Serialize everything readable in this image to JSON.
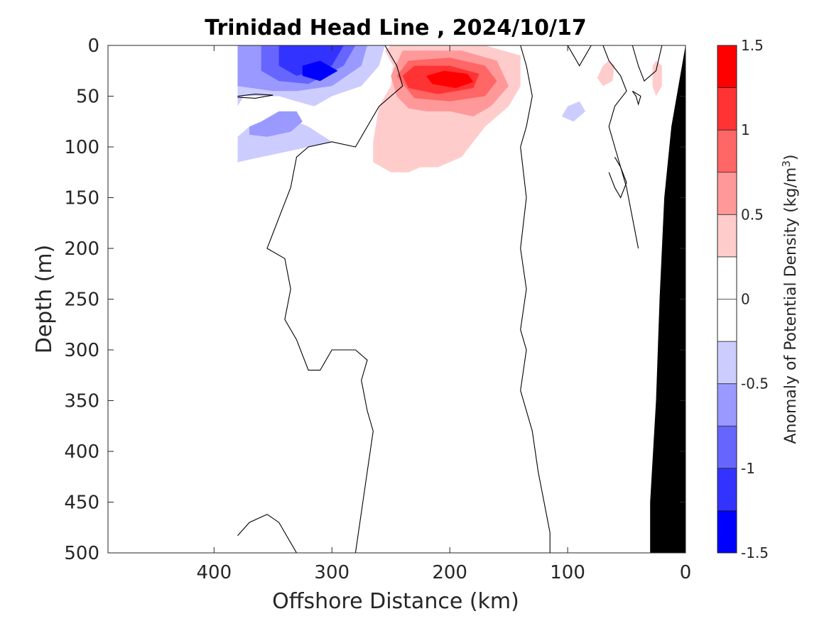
{
  "chart_data": {
    "type": "heatmap",
    "title": "Trinidad Head Line , 2024/10/17",
    "xlabel": "Offshore Distance (km)",
    "ylabel": "Depth (m)",
    "xlim": [
      490,
      0
    ],
    "ylim": [
      0,
      500
    ],
    "x_ticks": [
      400,
      300,
      200,
      100,
      0
    ],
    "y_ticks": [
      0,
      50,
      100,
      150,
      200,
      250,
      300,
      350,
      400,
      450,
      500
    ],
    "grid": false,
    "colorbar": {
      "label": "Anomaly of Potential Density (kg/m",
      "label_superscript": "3",
      "label_suffix": ")",
      "range": [
        -1.5,
        1.5
      ],
      "tick_values": [
        1.5,
        1,
        0.5,
        0,
        -0.5,
        -1,
        -1.5
      ],
      "tick_labels": [
        "1.5",
        "1",
        "0.5",
        "0",
        "-0.5",
        "-1",
        "-1.5"
      ],
      "levels": [
        {
          "from": 1.25,
          "to": 1.5,
          "color": "#ff0000"
        },
        {
          "from": 1.0,
          "to": 1.25,
          "color": "#ff3333"
        },
        {
          "from": 0.75,
          "to": 1.0,
          "color": "#ff6666"
        },
        {
          "from": 0.5,
          "to": 0.75,
          "color": "#ff9999"
        },
        {
          "from": 0.25,
          "to": 0.5,
          "color": "#ffcccc"
        },
        {
          "from": 0.0,
          "to": 0.25,
          "color": "#ffffff"
        },
        {
          "from": -0.25,
          "to": 0.0,
          "color": "#ffffff"
        },
        {
          "from": -0.5,
          "to": -0.25,
          "color": "#ccccff"
        },
        {
          "from": -0.75,
          "to": -0.5,
          "color": "#9999ff"
        },
        {
          "from": -1.0,
          "to": -0.75,
          "color": "#6666ff"
        },
        {
          "from": -1.25,
          "to": -1.0,
          "color": "#3333ff"
        },
        {
          "from": -1.5,
          "to": -1.25,
          "color": "#0000ff"
        }
      ]
    },
    "regions": [
      {
        "level": -0.375,
        "points": [
          [
            380,
            0
          ],
          [
            255,
            0
          ],
          [
            260,
            20
          ],
          [
            275,
            40
          ],
          [
            300,
            50
          ],
          [
            315,
            60
          ],
          [
            330,
            55
          ],
          [
            345,
            50
          ],
          [
            375,
            50
          ],
          [
            380,
            60
          ],
          [
            380,
            115
          ],
          [
            360,
            110
          ],
          [
            340,
            105
          ],
          [
            320,
            100
          ],
          [
            300,
            95
          ],
          [
            320,
            80
          ],
          [
            340,
            70
          ],
          [
            355,
            75
          ],
          [
            370,
            80
          ],
          [
            380,
            90
          ]
        ]
      },
      {
        "level": -0.625,
        "points": [
          [
            380,
            0
          ],
          [
            270,
            0
          ],
          [
            275,
            20
          ],
          [
            300,
            40
          ],
          [
            330,
            45
          ],
          [
            350,
            45
          ],
          [
            380,
            40
          ]
        ]
      },
      {
        "level": -0.625,
        "points": [
          [
            370,
            80
          ],
          [
            360,
            75
          ],
          [
            345,
            65
          ],
          [
            330,
            65
          ],
          [
            325,
            75
          ],
          [
            335,
            85
          ],
          [
            355,
            90
          ],
          [
            370,
            88
          ]
        ]
      },
      {
        "level": -0.875,
        "points": [
          [
            360,
            0
          ],
          [
            280,
            0
          ],
          [
            290,
            20
          ],
          [
            320,
            38
          ],
          [
            345,
            35
          ],
          [
            360,
            25
          ]
        ]
      },
      {
        "level": -1.125,
        "points": [
          [
            345,
            0
          ],
          [
            290,
            0
          ],
          [
            300,
            20
          ],
          [
            330,
            30
          ],
          [
            345,
            20
          ]
        ]
      },
      {
        "level": -1.375,
        "points": [
          [
            325,
            20
          ],
          [
            310,
            15
          ],
          [
            295,
            25
          ],
          [
            310,
            35
          ],
          [
            325,
            30
          ]
        ]
      },
      {
        "level": -0.375,
        "points": [
          [
            100,
            60
          ],
          [
            90,
            55
          ],
          [
            85,
            65
          ],
          [
            95,
            75
          ],
          [
            105,
            70
          ]
        ]
      },
      {
        "level": 0.375,
        "points": [
          [
            248,
            20
          ],
          [
            255,
            5
          ],
          [
            250,
            0
          ],
          [
            170,
            0
          ],
          [
            140,
            10
          ],
          [
            140,
            40
          ],
          [
            150,
            60
          ],
          [
            170,
            80
          ],
          [
            190,
            110
          ],
          [
            210,
            120
          ],
          [
            225,
            120
          ],
          [
            235,
            125
          ],
          [
            250,
            125
          ],
          [
            265,
            115
          ],
          [
            265,
            95
          ],
          [
            260,
            60
          ],
          [
            250,
            40
          ]
        ]
      },
      {
        "level": 0.625,
        "points": [
          [
            250,
            30
          ],
          [
            240,
            5
          ],
          [
            190,
            5
          ],
          [
            160,
            15
          ],
          [
            150,
            40
          ],
          [
            165,
            60
          ],
          [
            180,
            70
          ],
          [
            200,
            65
          ],
          [
            220,
            65
          ],
          [
            235,
            62
          ],
          [
            245,
            50
          ]
        ]
      },
      {
        "level": 0.875,
        "points": [
          [
            245,
            30
          ],
          [
            235,
            15
          ],
          [
            200,
            12
          ],
          [
            170,
            20
          ],
          [
            160,
            35
          ],
          [
            170,
            50
          ],
          [
            200,
            55
          ],
          [
            230,
            52
          ]
        ]
      },
      {
        "level": 1.125,
        "points": [
          [
            240,
            30
          ],
          [
            230,
            20
          ],
          [
            200,
            20
          ],
          [
            175,
            28
          ],
          [
            180,
            42
          ],
          [
            210,
            48
          ],
          [
            235,
            42
          ]
        ]
      },
      {
        "level": 1.375,
        "points": [
          [
            220,
            30
          ],
          [
            205,
            25
          ],
          [
            185,
            28
          ],
          [
            180,
            36
          ],
          [
            195,
            42
          ],
          [
            215,
            38
          ]
        ]
      },
      {
        "level": 0.375,
        "points": [
          [
            70,
            20
          ],
          [
            65,
            15
          ],
          [
            60,
            20
          ],
          [
            62,
            35
          ],
          [
            70,
            40
          ],
          [
            75,
            32
          ]
        ]
      },
      {
        "level": 0.375,
        "points": [
          [
            28,
            20
          ],
          [
            25,
            15
          ],
          [
            20,
            20
          ],
          [
            20,
            40
          ],
          [
            25,
            50
          ],
          [
            28,
            40
          ]
        ]
      }
    ],
    "zero_contours": [
      [
        [
          255,
          0
        ],
        [
          245,
          20
        ],
        [
          240,
          40
        ],
        [
          260,
          60
        ],
        [
          270,
          80
        ],
        [
          280,
          100
        ],
        [
          300,
          95
        ],
        [
          320,
          100
        ],
        [
          330,
          110
        ],
        [
          335,
          140
        ],
        [
          345,
          170
        ],
        [
          355,
          200
        ],
        [
          340,
          210
        ],
        [
          335,
          240
        ],
        [
          340,
          270
        ],
        [
          330,
          290
        ],
        [
          320,
          320
        ],
        [
          310,
          320
        ],
        [
          300,
          300
        ],
        [
          280,
          300
        ],
        [
          270,
          310
        ],
        [
          275,
          330
        ],
        [
          270,
          360
        ],
        [
          265,
          380
        ],
        [
          270,
          420
        ],
        [
          275,
          460
        ],
        [
          280,
          500
        ]
      ],
      [
        [
          140,
          0
        ],
        [
          135,
          20
        ],
        [
          130,
          50
        ],
        [
          135,
          80
        ],
        [
          140,
          100
        ],
        [
          135,
          150
        ],
        [
          140,
          200
        ],
        [
          135,
          240
        ],
        [
          140,
          280
        ],
        [
          135,
          300
        ],
        [
          140,
          340
        ],
        [
          130,
          380
        ],
        [
          125,
          420
        ],
        [
          120,
          450
        ],
        [
          115,
          480
        ],
        [
          115,
          500
        ]
      ],
      [
        [
          380,
          483
        ],
        [
          370,
          470
        ],
        [
          355,
          462
        ],
        [
          345,
          470
        ],
        [
          335,
          490
        ],
        [
          330,
          500
        ]
      ],
      [
        [
          380,
          50
        ],
        [
          365,
          48
        ],
        [
          350,
          49
        ],
        [
          365,
          52
        ],
        [
          380,
          51
        ]
      ],
      [
        [
          100,
          0
        ],
        [
          95,
          10
        ],
        [
          90,
          20
        ],
        [
          85,
          10
        ],
        [
          80,
          0
        ]
      ],
      [
        [
          70,
          0
        ],
        [
          65,
          15
        ],
        [
          55,
          30
        ],
        [
          50,
          45
        ],
        [
          60,
          60
        ],
        [
          65,
          80
        ],
        [
          60,
          100
        ],
        [
          55,
          120
        ],
        [
          50,
          140
        ],
        [
          45,
          170
        ],
        [
          40,
          200
        ]
      ],
      [
        [
          45,
          0
        ],
        [
          40,
          20
        ],
        [
          35,
          35
        ],
        [
          25,
          25
        ],
        [
          20,
          0
        ]
      ],
      [
        [
          45,
          45
        ],
        [
          42,
          50
        ],
        [
          40,
          58
        ],
        [
          38,
          50
        ],
        [
          45,
          45
        ]
      ],
      [
        [
          60,
          110
        ],
        [
          55,
          120
        ],
        [
          50,
          135
        ],
        [
          55,
          150
        ],
        [
          60,
          140
        ],
        [
          65,
          125
        ]
      ]
    ],
    "bathymetry": [
      [
        0,
        0
      ],
      [
        12,
        80
      ],
      [
        18,
        150
      ],
      [
        22,
        250
      ],
      [
        25,
        350
      ],
      [
        30,
        450
      ],
      [
        30,
        500
      ],
      [
        0,
        500
      ]
    ]
  }
}
